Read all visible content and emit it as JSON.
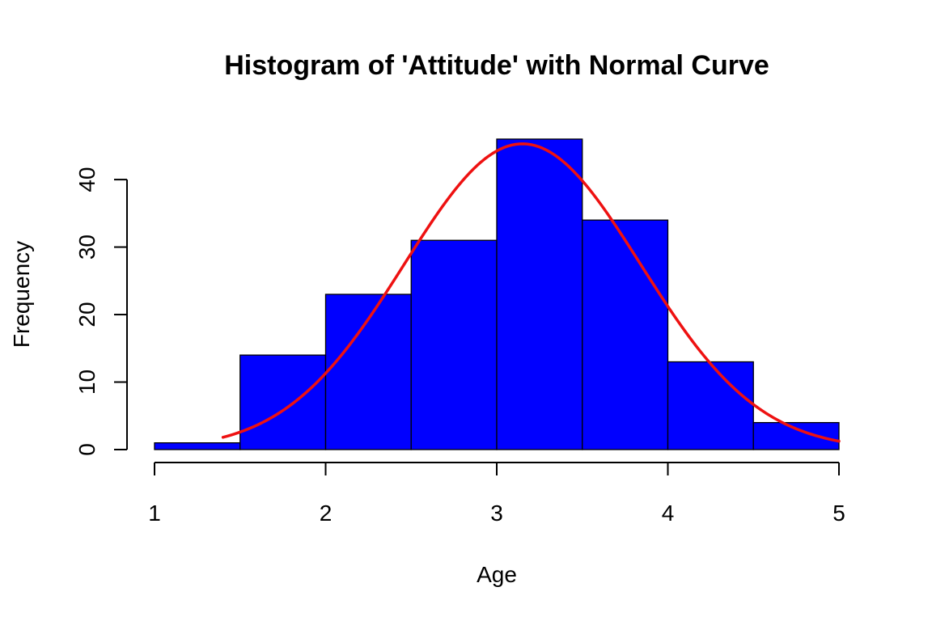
{
  "chart_data": {
    "type": "bar",
    "subtype": "histogram",
    "title": "Histogram of 'Attitude' with Normal Curve",
    "xlabel": "Age",
    "ylabel": "Frequency",
    "xlim": [
      1,
      5
    ],
    "ylim": [
      0,
      46
    ],
    "x_ticks": [
      1,
      2,
      3,
      4,
      5
    ],
    "y_ticks": [
      0,
      10,
      20,
      30,
      40
    ],
    "bins": [
      {
        "start": 1.0,
        "end": 1.5,
        "count": 1
      },
      {
        "start": 1.5,
        "end": 2.0,
        "count": 14
      },
      {
        "start": 2.0,
        "end": 2.5,
        "count": 23
      },
      {
        "start": 2.5,
        "end": 3.0,
        "count": 31
      },
      {
        "start": 3.0,
        "end": 3.5,
        "count": 46
      },
      {
        "start": 3.5,
        "end": 4.0,
        "count": 34
      },
      {
        "start": 4.0,
        "end": 4.5,
        "count": 13
      },
      {
        "start": 4.5,
        "end": 5.0,
        "count": 4
      }
    ],
    "normal_curve": {
      "mean": 3.15,
      "sd": 0.69,
      "peak": 45.3,
      "x_range": [
        1.4,
        5.0
      ]
    },
    "grid": false,
    "legend": "none",
    "colors": {
      "bar_fill": "#0000ff",
      "bar_border": "#000000",
      "curve": "#ee1111",
      "axis": "#000000"
    }
  }
}
